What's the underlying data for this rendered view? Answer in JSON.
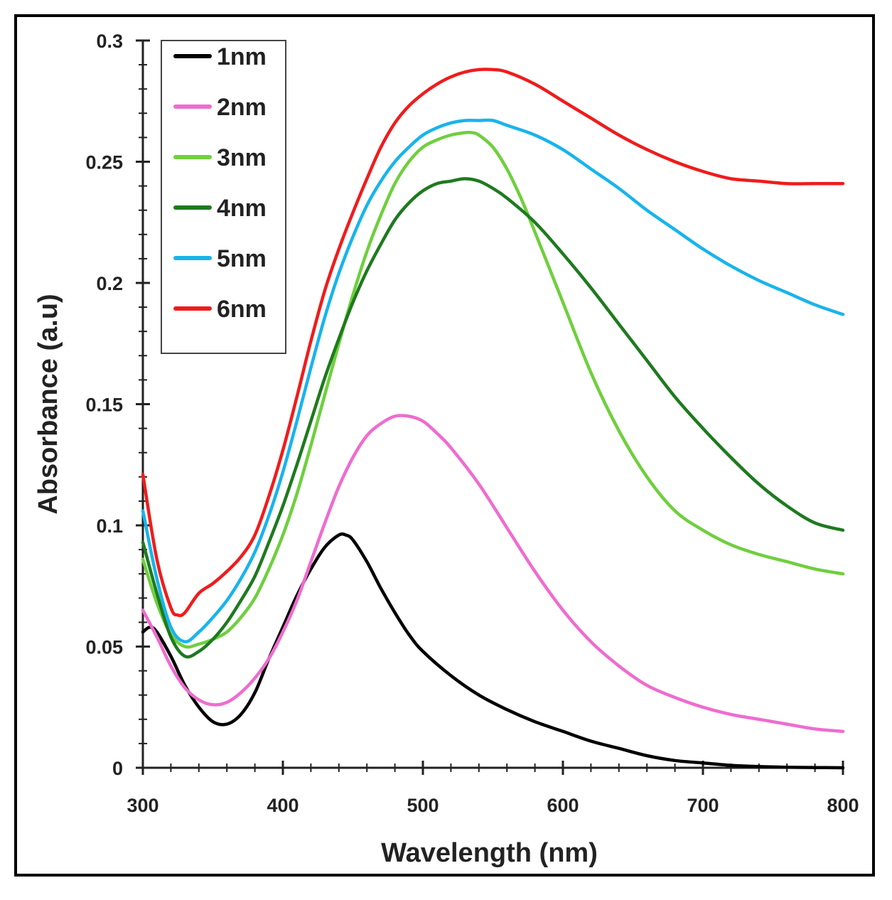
{
  "chart_data": {
    "type": "line",
    "title": "",
    "xlabel": "Wavelength (nm)",
    "ylabel": "Absorbance (a.u)",
    "xlim": [
      300,
      800
    ],
    "ylim": [
      0,
      0.3
    ],
    "xticks": [
      300,
      400,
      500,
      600,
      700,
      800
    ],
    "xtick_labels": [
      "300",
      "400",
      "500",
      "600",
      "700",
      "800"
    ],
    "yticks": [
      0,
      0.05,
      0.1,
      0.15,
      0.2,
      0.25,
      0.3
    ],
    "ytick_labels": [
      "0",
      "0.05",
      "0.1",
      "0.15",
      "0.2",
      "0.25",
      "0.3"
    ],
    "grid": false,
    "legend_position": "top-left",
    "series": [
      {
        "name": "1nm",
        "color": "#000000",
        "x": [
          300,
          305,
          310,
          320,
          330,
          340,
          350,
          360,
          370,
          380,
          390,
          400,
          410,
          420,
          430,
          440,
          445,
          450,
          460,
          470,
          480,
          490,
          500,
          520,
          540,
          560,
          580,
          600,
          620,
          640,
          660,
          680,
          700,
          720,
          740,
          760,
          780,
          800
        ],
        "y": [
          0.056,
          0.058,
          0.056,
          0.046,
          0.034,
          0.025,
          0.019,
          0.018,
          0.022,
          0.031,
          0.045,
          0.058,
          0.071,
          0.082,
          0.091,
          0.096,
          0.096,
          0.094,
          0.085,
          0.074,
          0.064,
          0.055,
          0.048,
          0.038,
          0.03,
          0.024,
          0.019,
          0.015,
          0.011,
          0.008,
          0.005,
          0.003,
          0.002,
          0.001,
          0.0005,
          0.0002,
          0.0001,
          0.0
        ]
      },
      {
        "name": "2nm",
        "color": "#ee6ccf",
        "x": [
          300,
          310,
          320,
          330,
          340,
          350,
          360,
          370,
          380,
          390,
          400,
          410,
          420,
          430,
          440,
          450,
          460,
          470,
          480,
          490,
          500,
          510,
          520,
          540,
          560,
          580,
          600,
          620,
          640,
          660,
          680,
          700,
          720,
          740,
          760,
          780,
          800
        ],
        "y": [
          0.065,
          0.054,
          0.042,
          0.033,
          0.028,
          0.026,
          0.027,
          0.031,
          0.037,
          0.045,
          0.056,
          0.069,
          0.085,
          0.101,
          0.116,
          0.128,
          0.137,
          0.142,
          0.145,
          0.145,
          0.143,
          0.138,
          0.132,
          0.117,
          0.099,
          0.081,
          0.065,
          0.052,
          0.042,
          0.034,
          0.029,
          0.025,
          0.022,
          0.02,
          0.018,
          0.016,
          0.015
        ]
      },
      {
        "name": "3nm",
        "color": "#6fcf3e",
        "x": [
          300,
          310,
          320,
          330,
          340,
          350,
          360,
          370,
          380,
          390,
          400,
          410,
          420,
          430,
          440,
          450,
          460,
          470,
          480,
          490,
          500,
          510,
          520,
          530,
          535,
          540,
          550,
          560,
          570,
          580,
          600,
          620,
          640,
          660,
          680,
          700,
          720,
          740,
          760,
          780,
          800
        ],
        "y": [
          0.086,
          0.068,
          0.055,
          0.05,
          0.051,
          0.053,
          0.056,
          0.062,
          0.07,
          0.082,
          0.096,
          0.113,
          0.133,
          0.154,
          0.175,
          0.195,
          0.213,
          0.228,
          0.241,
          0.25,
          0.256,
          0.259,
          0.261,
          0.262,
          0.262,
          0.261,
          0.256,
          0.247,
          0.235,
          0.221,
          0.192,
          0.163,
          0.139,
          0.12,
          0.106,
          0.098,
          0.092,
          0.088,
          0.085,
          0.082,
          0.08
        ]
      },
      {
        "name": "4nm",
        "color": "#1e7a1e",
        "x": [
          300,
          310,
          320,
          330,
          340,
          350,
          360,
          370,
          380,
          390,
          400,
          410,
          420,
          430,
          440,
          450,
          460,
          470,
          480,
          490,
          500,
          510,
          520,
          530,
          540,
          550,
          560,
          580,
          600,
          620,
          640,
          660,
          680,
          700,
          720,
          740,
          760,
          780,
          800
        ],
        "y": [
          0.093,
          0.072,
          0.054,
          0.046,
          0.048,
          0.053,
          0.06,
          0.069,
          0.079,
          0.093,
          0.108,
          0.125,
          0.143,
          0.161,
          0.177,
          0.192,
          0.205,
          0.216,
          0.226,
          0.233,
          0.238,
          0.241,
          0.242,
          0.243,
          0.242,
          0.239,
          0.235,
          0.225,
          0.212,
          0.198,
          0.183,
          0.168,
          0.153,
          0.14,
          0.128,
          0.117,
          0.108,
          0.101,
          0.098
        ]
      },
      {
        "name": "5nm",
        "color": "#18b4ec",
        "x": [
          300,
          310,
          320,
          330,
          340,
          350,
          360,
          370,
          380,
          390,
          400,
          410,
          420,
          430,
          440,
          450,
          460,
          470,
          480,
          490,
          500,
          510,
          520,
          530,
          540,
          550,
          560,
          580,
          600,
          620,
          640,
          660,
          680,
          700,
          720,
          740,
          760,
          780,
          800
        ],
        "y": [
          0.106,
          0.078,
          0.058,
          0.052,
          0.056,
          0.062,
          0.069,
          0.078,
          0.089,
          0.104,
          0.122,
          0.143,
          0.165,
          0.186,
          0.204,
          0.219,
          0.232,
          0.242,
          0.25,
          0.256,
          0.261,
          0.264,
          0.266,
          0.267,
          0.267,
          0.267,
          0.265,
          0.261,
          0.255,
          0.247,
          0.239,
          0.23,
          0.222,
          0.214,
          0.207,
          0.201,
          0.196,
          0.191,
          0.187
        ]
      },
      {
        "name": "6nm",
        "color": "#ef1c1c",
        "x": [
          300,
          310,
          320,
          325,
          330,
          340,
          350,
          360,
          370,
          380,
          390,
          400,
          410,
          420,
          430,
          440,
          450,
          460,
          470,
          480,
          490,
          500,
          510,
          520,
          530,
          540,
          550,
          560,
          580,
          600,
          620,
          640,
          660,
          680,
          700,
          720,
          740,
          760,
          780,
          800
        ],
        "y": [
          0.121,
          0.086,
          0.066,
          0.063,
          0.064,
          0.072,
          0.076,
          0.081,
          0.087,
          0.096,
          0.112,
          0.131,
          0.153,
          0.176,
          0.197,
          0.214,
          0.229,
          0.243,
          0.256,
          0.266,
          0.273,
          0.278,
          0.282,
          0.285,
          0.287,
          0.288,
          0.288,
          0.287,
          0.282,
          0.275,
          0.268,
          0.261,
          0.255,
          0.25,
          0.246,
          0.243,
          0.242,
          0.241,
          0.241,
          0.241
        ]
      }
    ]
  }
}
